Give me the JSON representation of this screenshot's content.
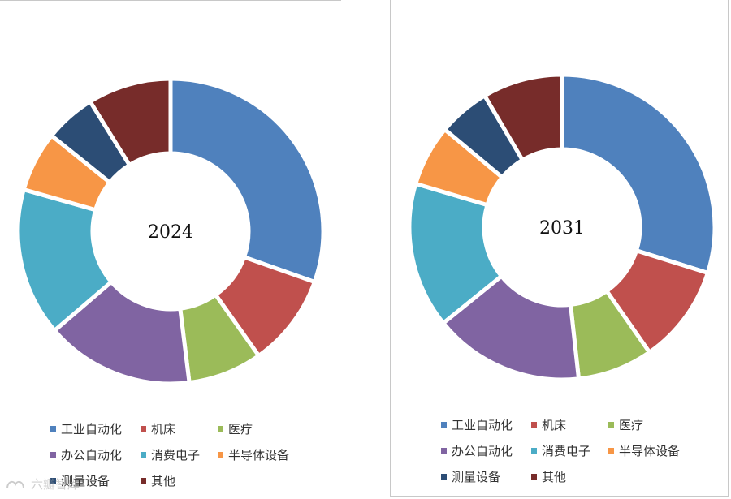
{
  "colors": [
    "#4f81bd",
    "#c0504d",
    "#9bbb59",
    "#8064a2",
    "#4bacc6",
    "#f79646",
    "#2c4d75",
    "#772c2a"
  ],
  "chart_data": [
    {
      "type": "pie",
      "donut": true,
      "center_label": "2024",
      "categories": [
        "工业自动化",
        "机床",
        "医疗",
        "办公自动化",
        "消费电子",
        "半导体设备",
        "测量设备",
        "其他"
      ],
      "values": [
        31,
        10,
        8,
        16,
        16,
        6.5,
        5.5,
        9
      ],
      "legend": "bottom"
    },
    {
      "type": "pie",
      "donut": true,
      "center_label": "2031",
      "categories": [
        "工业自动化",
        "机床",
        "医疗",
        "办公自动化",
        "消费电子",
        "半导体设备",
        "测量设备",
        "其他"
      ],
      "values": [
        30,
        10.5,
        8,
        16,
        15.5,
        6.5,
        5.5,
        8.5
      ],
      "legend": "bottom"
    }
  ],
  "watermark": "六瓣智库"
}
